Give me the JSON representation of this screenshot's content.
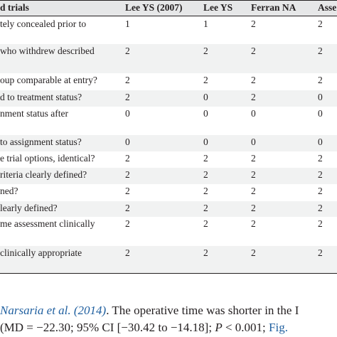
{
  "table": {
    "headers": [
      "d trials",
      "Lee YS (2007)",
      "Lee YS",
      "Ferran NA",
      "Asse"
    ],
    "rows": [
      {
        "label": [
          "tely concealed prior to",
          ""
        ],
        "values": [
          "1",
          "1",
          "2",
          "2"
        ]
      },
      {
        "label": [
          "who withdrew described",
          ""
        ],
        "values": [
          "2",
          "2",
          "2",
          "2"
        ]
      },
      {
        "label": [
          "oup comparable at entry?"
        ],
        "values": [
          "2",
          "2",
          "2",
          "2"
        ]
      },
      {
        "label": [
          "d to treatment status?"
        ],
        "values": [
          "2",
          "0",
          "2",
          "0"
        ]
      },
      {
        "label": [
          "nment status after",
          ""
        ],
        "values": [
          "0",
          "0",
          "0",
          "0"
        ]
      },
      {
        "label": [
          "to assignment status?"
        ],
        "values": [
          "0",
          "0",
          "0",
          "0"
        ]
      },
      {
        "label": [
          "e trial options, identical?"
        ],
        "values": [
          "2",
          "2",
          "2",
          "2"
        ]
      },
      {
        "label": [
          "riteria clearly defined?"
        ],
        "values": [
          "2",
          "2",
          "2",
          "2"
        ]
      },
      {
        "label": [
          "ned?"
        ],
        "values": [
          "2",
          "2",
          "2",
          "2"
        ]
      },
      {
        "label": [
          "learly defined?"
        ],
        "values": [
          "2",
          "2",
          "2",
          "2"
        ]
      },
      {
        "label": [
          "me assessment clinically",
          ""
        ],
        "values": [
          "2",
          "2",
          "2",
          "2"
        ]
      },
      {
        "label": [
          "clinically appropriate",
          ""
        ],
        "values": [
          "2",
          "2",
          "2",
          "2"
        ]
      }
    ]
  },
  "caption": {
    "line1_ref": "Narsaria et al. (2014)",
    "line1_text": ". The operative time was shorter in the I",
    "line2_a": "(MD = −22.30; 95% CI [−30.42 to −14.18]; ",
    "line2_p": "P",
    "line2_b": " < 0.001; ",
    "line2_link": "Fig."
  }
}
